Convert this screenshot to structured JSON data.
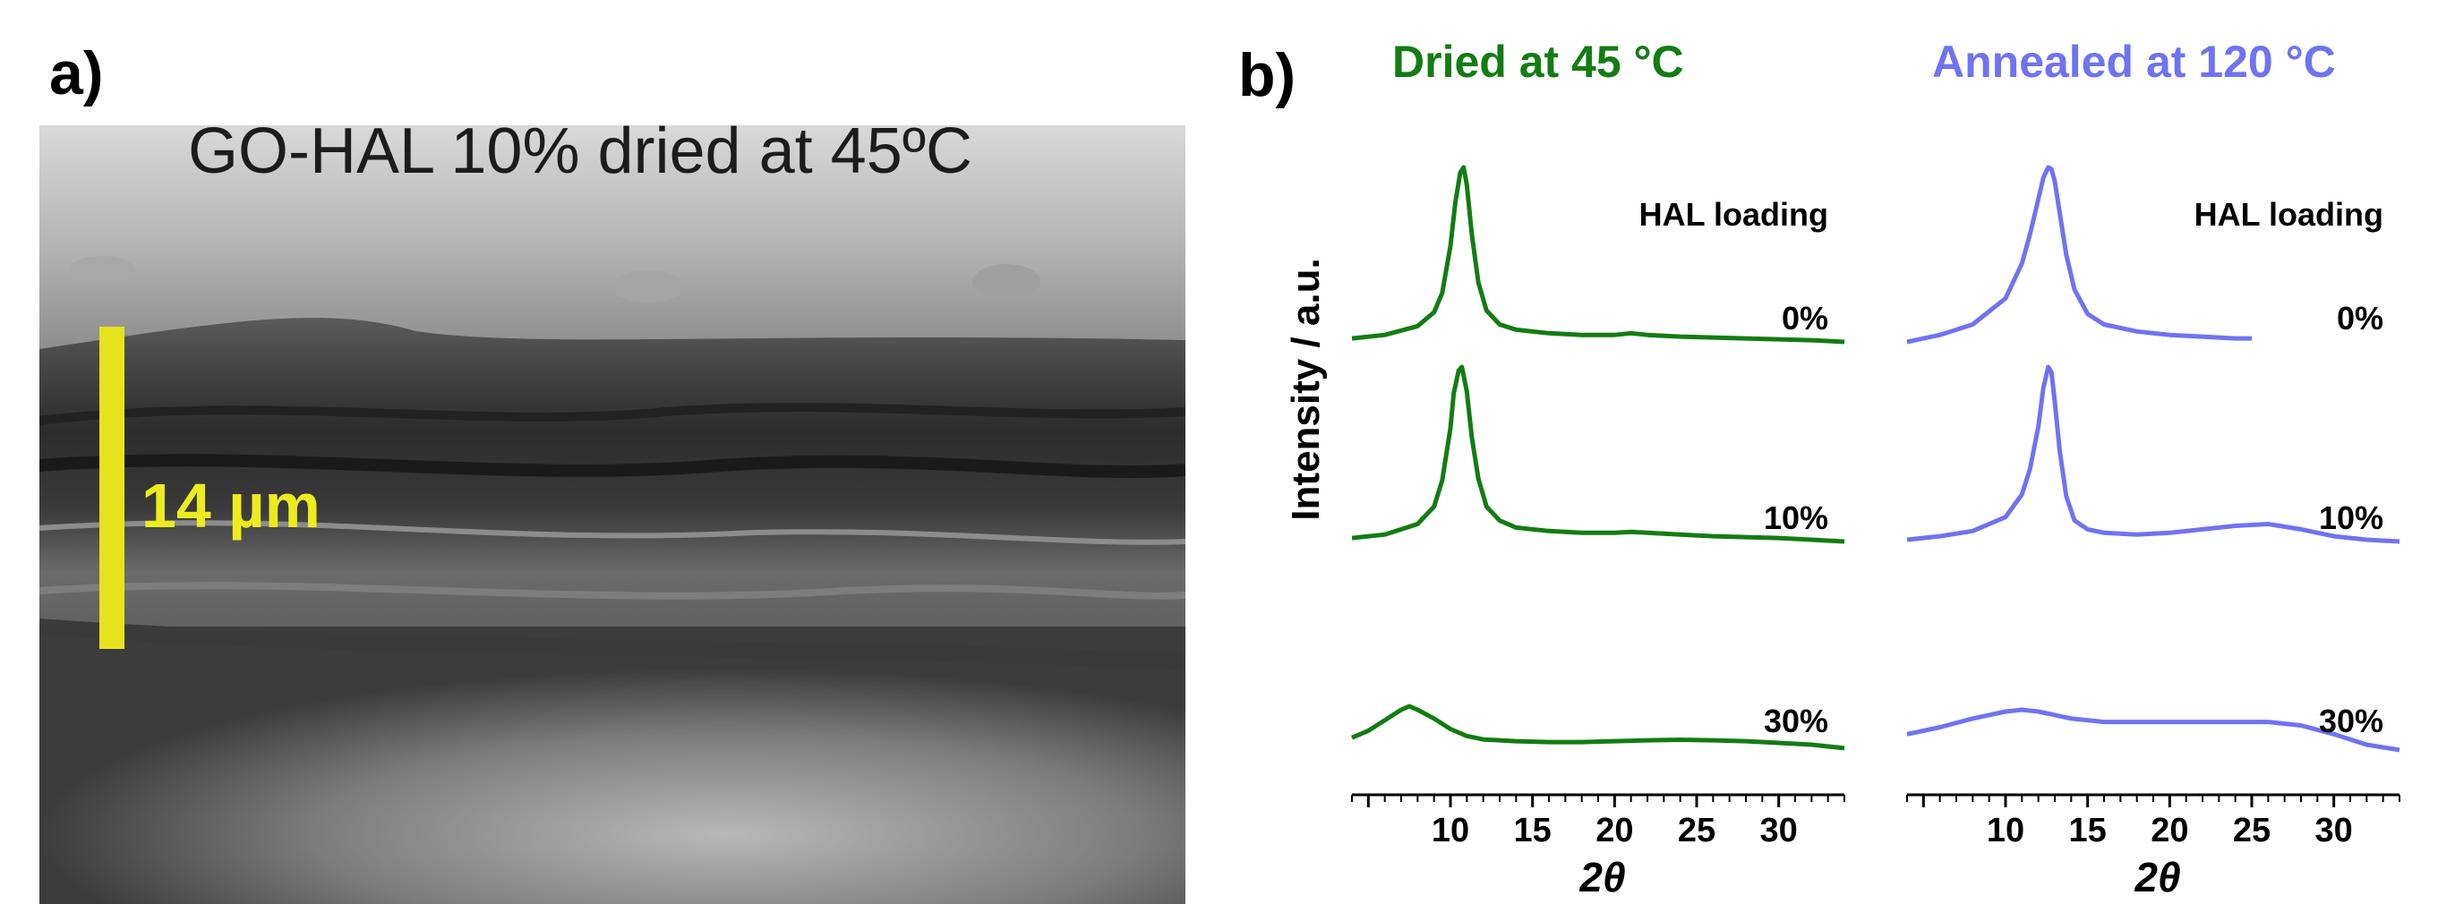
{
  "panel_a": {
    "label": "a)",
    "image_caption": "GO-HAL 10% dried at 45ºC",
    "scale_bar_label": "14 µm",
    "scale_bar_color": "#e6e31c"
  },
  "panel_b": {
    "label": "b)",
    "y_axis_label": "Intensity  / a.u."
  },
  "chart_data": [
    {
      "type": "line",
      "title": "Dried at 45 °C",
      "title_color": "#137c13",
      "xlabel": "2θ",
      "ylabel": "Intensity  / a.u.",
      "xlim": [
        4,
        34
      ],
      "xticks": [
        10,
        15,
        20,
        25,
        30
      ],
      "grid": false,
      "legend_title": "HAL loading",
      "color": "#137c13",
      "series": [
        {
          "name": "0%",
          "x": [
            4,
            6,
            8,
            9,
            9.5,
            10,
            10.3,
            10.6,
            10.8,
            11.0,
            11.3,
            11.7,
            12.2,
            13,
            14,
            16,
            18,
            20,
            21,
            22,
            24,
            26,
            28,
            30,
            32,
            34
          ],
          "y": [
            0.02,
            0.04,
            0.09,
            0.17,
            0.28,
            0.55,
            0.8,
            0.97,
            1.0,
            0.9,
            0.62,
            0.34,
            0.18,
            0.1,
            0.07,
            0.05,
            0.04,
            0.04,
            0.05,
            0.04,
            0.03,
            0.025,
            0.02,
            0.015,
            0.01,
            0.0
          ]
        },
        {
          "name": "10%",
          "x": [
            4,
            6,
            8,
            9,
            9.5,
            10,
            10.2,
            10.5,
            10.7,
            11.0,
            11.3,
            11.7,
            12.2,
            13,
            14,
            16,
            18,
            20,
            21,
            22,
            24,
            26,
            28,
            30,
            32,
            34
          ],
          "y": [
            0.02,
            0.04,
            0.1,
            0.2,
            0.35,
            0.65,
            0.85,
            0.98,
            1.0,
            0.86,
            0.6,
            0.36,
            0.2,
            0.12,
            0.08,
            0.06,
            0.05,
            0.05,
            0.055,
            0.05,
            0.04,
            0.03,
            0.025,
            0.02,
            0.01,
            0.0
          ]
        },
        {
          "name": "30%",
          "x": [
            4,
            5,
            6,
            7,
            7.5,
            8,
            9,
            10,
            11,
            12,
            14,
            16,
            18,
            20,
            22,
            24,
            26,
            28,
            30,
            32,
            34
          ],
          "y": [
            0.04,
            0.08,
            0.14,
            0.2,
            0.22,
            0.2,
            0.15,
            0.09,
            0.05,
            0.03,
            0.02,
            0.015,
            0.015,
            0.02,
            0.025,
            0.028,
            0.025,
            0.02,
            0.01,
            0.0,
            -0.02
          ]
        }
      ]
    },
    {
      "type": "line",
      "title": "Annealed at 120 °C",
      "title_color": "#6f73f2",
      "xlabel": "2θ",
      "ylabel": "",
      "xlim": [
        4,
        34
      ],
      "xticks": [
        10,
        15,
        20,
        25,
        30
      ],
      "grid": false,
      "legend_title": "HAL loading",
      "color": "#6f73f2",
      "series": [
        {
          "name": "0%",
          "x": [
            4,
            6,
            8,
            10,
            11,
            11.5,
            12,
            12.3,
            12.6,
            12.8,
            13.0,
            13.3,
            13.7,
            14.2,
            15,
            16,
            18,
            20,
            22,
            24,
            25
          ],
          "y": [
            0.0,
            0.04,
            0.1,
            0.25,
            0.45,
            0.62,
            0.82,
            0.94,
            1.0,
            0.99,
            0.92,
            0.74,
            0.5,
            0.3,
            0.16,
            0.1,
            0.06,
            0.04,
            0.03,
            0.02,
            0.02
          ]
        },
        {
          "name": "10%",
          "x": [
            4,
            6,
            8,
            10,
            11,
            11.5,
            12,
            12.3,
            12.6,
            12.8,
            13.0,
            13.3,
            13.7,
            14.2,
            15,
            16,
            18,
            20,
            22,
            24,
            26,
            28,
            30,
            32,
            34
          ],
          "y": [
            0.01,
            0.03,
            0.06,
            0.14,
            0.27,
            0.42,
            0.66,
            0.88,
            1.0,
            0.97,
            0.8,
            0.52,
            0.26,
            0.12,
            0.07,
            0.05,
            0.04,
            0.05,
            0.07,
            0.09,
            0.1,
            0.07,
            0.03,
            0.01,
            0.0
          ]
        },
        {
          "name": "30%",
          "x": [
            4,
            6,
            8,
            10,
            11,
            12,
            14,
            16,
            18,
            20,
            22,
            24,
            26,
            28,
            30,
            32,
            34
          ],
          "y": [
            0.06,
            0.1,
            0.15,
            0.19,
            0.2,
            0.19,
            0.15,
            0.13,
            0.13,
            0.13,
            0.13,
            0.13,
            0.13,
            0.11,
            0.06,
            0.0,
            -0.03
          ]
        }
      ]
    }
  ]
}
